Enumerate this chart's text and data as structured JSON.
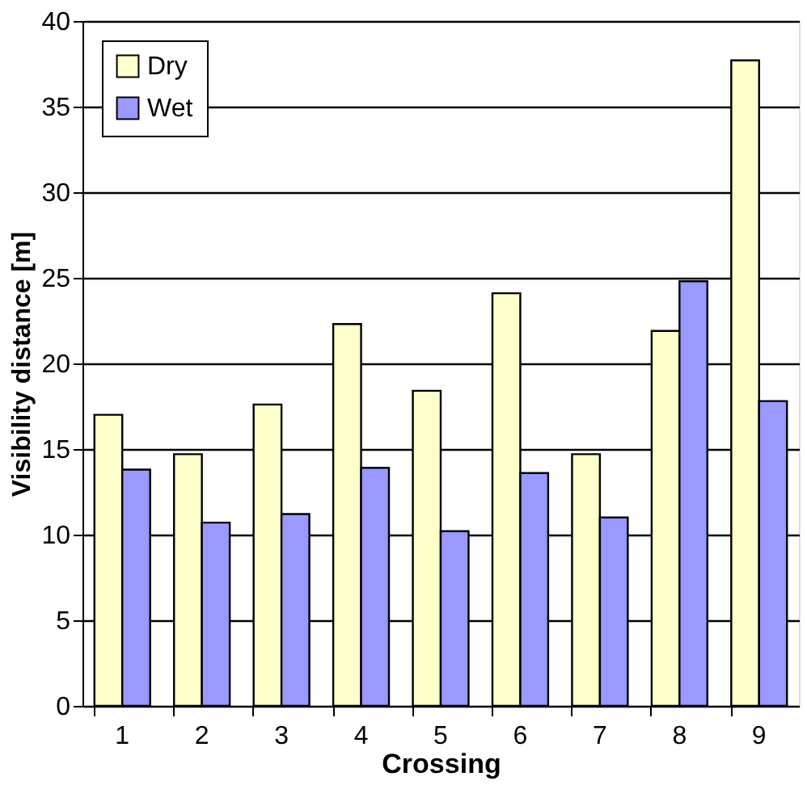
{
  "chart_data": {
    "type": "bar",
    "xlabel": "Crossing",
    "ylabel": "Visibility distance [m]",
    "categories": [
      "1",
      "2",
      "3",
      "4",
      "5",
      "6",
      "7",
      "8",
      "9"
    ],
    "series": [
      {
        "name": "Dry",
        "color": "#ffffcc",
        "values": [
          17.0,
          14.7,
          17.6,
          22.3,
          18.4,
          24.1,
          14.7,
          21.9,
          37.7
        ]
      },
      {
        "name": "Wet",
        "color": "#9999ff",
        "values": [
          13.8,
          10.7,
          11.2,
          13.9,
          10.2,
          13.6,
          11.0,
          24.8,
          17.8
        ]
      }
    ],
    "ylim": [
      0,
      40
    ],
    "yticks": [
      0,
      5,
      10,
      15,
      20,
      25,
      30,
      35,
      40
    ],
    "grid": "y",
    "legend": "top left"
  }
}
